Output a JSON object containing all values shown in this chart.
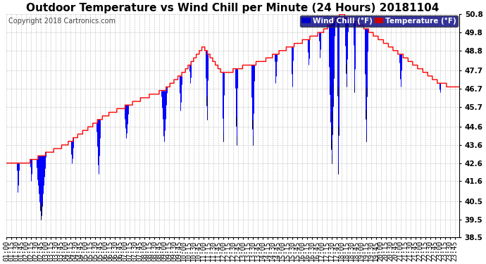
{
  "title": "Outdoor Temperature vs Wind Chill per Minute (24 Hours) 20181104",
  "copyright": "Copyright 2018 Cartronics.com",
  "legend_labels": [
    "Wind Chill (°F)",
    "Temperature (°F)"
  ],
  "legend_colors_bg": [
    "#0000cc",
    "#cc0000"
  ],
  "temp_color": "#ff0000",
  "windchill_color": "#0000ff",
  "windchill_thin_color": "#000000",
  "background_color": "#ffffff",
  "plot_bg_color": "#ffffff",
  "grid_color": "#bbbbbb",
  "ylim": [
    38.5,
    50.8
  ],
  "yticks": [
    38.5,
    39.5,
    40.5,
    41.6,
    42.6,
    43.6,
    44.6,
    45.7,
    46.7,
    47.7,
    48.8,
    49.8,
    50.8
  ],
  "title_fontsize": 11,
  "copyright_fontsize": 7,
  "legend_fontsize": 7.5,
  "tick_fontsize": 7
}
